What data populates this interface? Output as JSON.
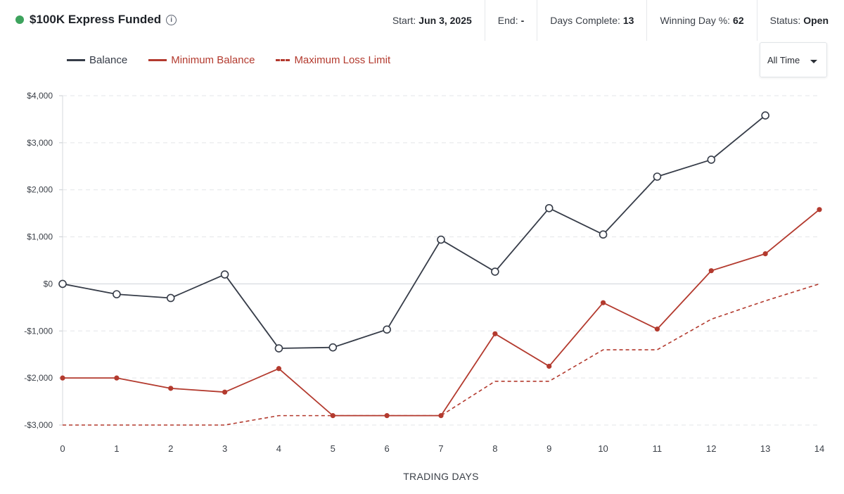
{
  "header": {
    "account_title": "$100K Express Funded",
    "status_color": "#3da35d",
    "info_icon": "info-icon",
    "stats": [
      {
        "label": "Start:",
        "value": "Jun 3, 2025"
      },
      {
        "label": "End:",
        "value": "-"
      },
      {
        "label": "Days Complete:",
        "value": "13"
      },
      {
        "label": "Winning Day %:",
        "value": "62"
      },
      {
        "label": "Status:",
        "value": "Open"
      }
    ]
  },
  "range_select": {
    "value": "All Time",
    "icon": "caret-down-icon"
  },
  "legend": [
    {
      "label": "Balance",
      "color": "#363c48",
      "style": "solid"
    },
    {
      "label": "Minimum Balance",
      "color": "#b33a2e",
      "style": "solid"
    },
    {
      "label": "Maximum Loss Limit",
      "color": "#b33a2e",
      "style": "dashed"
    }
  ],
  "chart_data": {
    "type": "line",
    "xlabel": "TRADING DAYS",
    "ylabel": "",
    "x": [
      0,
      1,
      2,
      3,
      4,
      5,
      6,
      7,
      8,
      9,
      10,
      11,
      12,
      13,
      14
    ],
    "xlim": [
      0,
      14
    ],
    "ylim": [
      -3000,
      4000
    ],
    "yticks": [
      4000,
      3000,
      2000,
      1000,
      0,
      -1000,
      -2000,
      -3000
    ],
    "ytick_labels": [
      "$4,000",
      "$3,000",
      "$2,000",
      "$1,000",
      "$0",
      "-$1,000",
      "-$2,000",
      "-$3,000"
    ],
    "grid": "horizontal dashed",
    "legend_position": "top-left",
    "series": [
      {
        "name": "Balance",
        "color": "#363c48",
        "dash": false,
        "marker": "hollow-circle",
        "x": [
          0,
          1,
          2,
          3,
          4,
          5,
          6,
          7,
          8,
          9,
          10,
          11,
          12,
          13
        ],
        "values": [
          0,
          -220,
          -300,
          200,
          -1370,
          -1350,
          -970,
          940,
          260,
          1610,
          1050,
          2280,
          2640,
          3580
        ]
      },
      {
        "name": "Minimum Balance",
        "color": "#b33a2e",
        "dash": false,
        "marker": "filled-dot",
        "x": [
          0,
          1,
          2,
          3,
          4,
          5,
          6,
          7,
          8,
          9,
          10,
          11,
          12,
          13,
          14
        ],
        "values": [
          -2000,
          -2000,
          -2220,
          -2300,
          -1800,
          -2800,
          -2800,
          -2800,
          -1060,
          -1750,
          -400,
          -960,
          280,
          640,
          1580
        ]
      },
      {
        "name": "Maximum Loss Limit",
        "color": "#b33a2e",
        "dash": true,
        "marker": "none",
        "x": [
          0,
          1,
          2,
          3,
          4,
          5,
          6,
          7,
          8,
          9,
          10,
          11,
          12,
          13,
          14
        ],
        "values": [
          -3000,
          -3000,
          -3000,
          -3000,
          -2800,
          -2800,
          -2800,
          -2800,
          -2070,
          -2070,
          -1400,
          -1400,
          -750,
          -360,
          0
        ]
      }
    ]
  }
}
